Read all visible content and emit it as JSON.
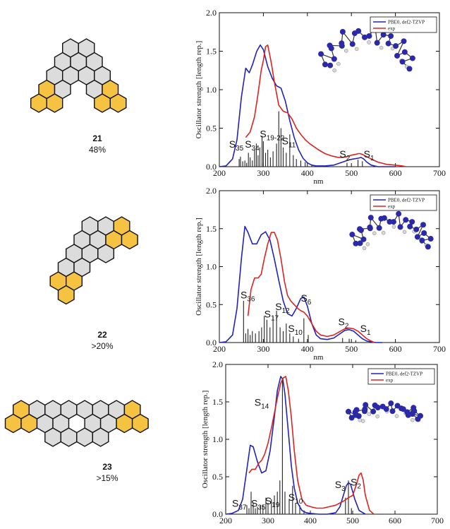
{
  "molecules": [
    {
      "number": "21",
      "yield": "48%"
    },
    {
      "number": "22",
      "yield": ">20%"
    },
    {
      "number": "23",
      "yield": ">15%"
    }
  ],
  "colors": {
    "theory": "#2222bb",
    "experiment": "#dd2222",
    "sticks": "#222222",
    "ring_fill_gray": "#dcdcdc",
    "ring_fill_yellow": "#f5c242",
    "atom_carbon": "#2a2aa8",
    "atom_hydrogen": "#d8d8d8"
  },
  "chart_data": [
    {
      "type": "line",
      "xlabel": "nm",
      "ylabel": "Oscillator strength [length rep.]",
      "xlim": [
        200,
        700
      ],
      "ylim": [
        0,
        2.0
      ],
      "xticks": [
        "200",
        "300",
        "400",
        "500",
        "600",
        "700"
      ],
      "yticks": [
        "0.0",
        "0.5",
        "1.0",
        "1.5",
        "2.0"
      ],
      "legend_position": "top-right",
      "series": [
        {
          "name": "PBE0, def2-TZVP",
          "color": "#2222bb",
          "x": [
            200,
            215,
            230,
            240,
            250,
            260,
            268,
            275,
            285,
            293,
            300,
            310,
            320,
            330,
            340,
            350,
            360,
            370,
            380,
            390,
            400,
            410,
            420,
            440,
            460,
            480,
            495,
            505,
            515,
            522,
            528,
            535,
            545,
            560,
            580,
            600
          ],
          "y": [
            0,
            0.01,
            0.1,
            0.35,
            0.9,
            1.28,
            1.22,
            1.32,
            1.5,
            1.58,
            1.52,
            1.3,
            1.15,
            1.05,
            1.02,
            0.85,
            0.6,
            0.38,
            0.22,
            0.11,
            0.05,
            0.02,
            0.01,
            0.01,
            0.02,
            0.06,
            0.09,
            0.1,
            0.11,
            0.12,
            0.1,
            0.06,
            0.02,
            0.0,
            0,
            0
          ]
        },
        {
          "name": "exp",
          "color": "#dd2222",
          "x": [
            260,
            270,
            280,
            288,
            295,
            300,
            305,
            310,
            318,
            325,
            335,
            345,
            355,
            365,
            375,
            385,
            395,
            405,
            415,
            425,
            440,
            455,
            470,
            480,
            490,
            500,
            510,
            515,
            520,
            525,
            535,
            545,
            560,
            580,
            600,
            615,
            625
          ],
          "y": [
            0.38,
            0.45,
            0.65,
            0.95,
            1.25,
            1.38,
            1.56,
            1.58,
            1.35,
            1.1,
            0.8,
            0.72,
            0.7,
            0.62,
            0.5,
            0.42,
            0.35,
            0.3,
            0.26,
            0.22,
            0.17,
            0.14,
            0.12,
            0.12,
            0.13,
            0.15,
            0.16,
            0.17,
            0.17,
            0.16,
            0.13,
            0.1,
            0.06,
            0.03,
            0.02,
            0.01,
            0
          ]
        }
      ],
      "sticks": [
        {
          "x": 245,
          "f": 0.1
        },
        {
          "x": 248,
          "f": 0.13
        },
        {
          "x": 253,
          "f": 0.07
        },
        {
          "x": 258,
          "f": 0.08
        },
        {
          "x": 262,
          "f": 0.05
        },
        {
          "x": 266,
          "f": 0.18
        },
        {
          "x": 270,
          "f": 0.12
        },
        {
          "x": 275,
          "f": 0.08
        },
        {
          "x": 280,
          "f": 0.22
        },
        {
          "x": 284,
          "f": 0.3
        },
        {
          "x": 288,
          "f": 0.15
        },
        {
          "x": 292,
          "f": 0.25
        },
        {
          "x": 297,
          "f": 0.4
        },
        {
          "x": 300,
          "f": 0.33
        },
        {
          "x": 305,
          "f": 0.18
        },
        {
          "x": 310,
          "f": 0.22
        },
        {
          "x": 316,
          "f": 0.12
        },
        {
          "x": 322,
          "f": 0.2
        },
        {
          "x": 330,
          "f": 0.3
        },
        {
          "x": 335,
          "f": 0.72
        },
        {
          "x": 340,
          "f": 0.5
        },
        {
          "x": 345,
          "f": 0.25
        },
        {
          "x": 352,
          "f": 0.18
        },
        {
          "x": 360,
          "f": 0.42
        },
        {
          "x": 368,
          "f": 0.15
        },
        {
          "x": 375,
          "f": 0.1
        },
        {
          "x": 385,
          "f": 0.08
        },
        {
          "x": 395,
          "f": 0.06
        },
        {
          "x": 410,
          "f": 0.03
        },
        {
          "x": 490,
          "f": 0.05
        },
        {
          "x": 515,
          "f": 0.09
        },
        {
          "x": 525,
          "f": 0.07
        }
      ],
      "annotations": [
        {
          "label": "S",
          "sub": "35",
          "x": 222,
          "y": 0.25
        },
        {
          "label": "S",
          "sub": "34",
          "x": 258,
          "y": 0.25
        },
        {
          "label": "S",
          "sub": "19-22",
          "x": 292,
          "y": 0.38
        },
        {
          "label": "S",
          "sub": "11",
          "x": 342,
          "y": 0.29
        },
        {
          "label": "S",
          "sub": "2",
          "x": 473,
          "y": 0.12
        },
        {
          "label": "S",
          "sub": "1",
          "x": 528,
          "y": 0.12
        }
      ]
    },
    {
      "type": "line",
      "xlabel": "nm",
      "ylabel": "Oscillator strength [length rep.]",
      "xlim": [
        200,
        700
      ],
      "ylim": [
        0,
        2.0
      ],
      "xticks": [
        "200",
        "300",
        "400",
        "500",
        "600",
        "700"
      ],
      "yticks": [
        "0.0",
        "0.5",
        "1.0",
        "1.5",
        "2.0"
      ],
      "legend_position": "top-right",
      "series": [
        {
          "name": "PBE0, def2-TZVP",
          "color": "#2222bb",
          "x": [
            200,
            215,
            230,
            240,
            250,
            258,
            265,
            275,
            285,
            295,
            305,
            315,
            325,
            335,
            345,
            355,
            365,
            375,
            385,
            392,
            400,
            410,
            420,
            430,
            445,
            460,
            475,
            485,
            495,
            505,
            515,
            525,
            535,
            545,
            555,
            570
          ],
          "y": [
            0,
            0.01,
            0.1,
            0.45,
            1.1,
            1.53,
            1.45,
            1.3,
            1.3,
            1.42,
            1.46,
            1.35,
            1.1,
            0.82,
            0.55,
            0.38,
            0.35,
            0.45,
            0.58,
            0.6,
            0.48,
            0.25,
            0.1,
            0.05,
            0.04,
            0.06,
            0.12,
            0.16,
            0.17,
            0.15,
            0.1,
            0.05,
            0.02,
            0.01,
            0,
            0
          ]
        },
        {
          "name": "exp",
          "color": "#dd2222",
          "x": [
            265,
            272,
            280,
            288,
            295,
            302,
            310,
            318,
            325,
            332,
            340,
            348,
            355,
            362,
            370,
            378,
            385,
            392,
            400,
            410,
            420,
            430,
            445,
            460,
            475,
            485,
            495,
            505,
            515,
            525,
            535,
            545,
            552
          ],
          "y": [
            0.35,
            0.7,
            0.85,
            0.85,
            0.9,
            1.1,
            1.3,
            1.45,
            1.45,
            1.35,
            1.1,
            0.8,
            0.62,
            0.55,
            0.5,
            0.45,
            0.42,
            0.4,
            0.35,
            0.25,
            0.15,
            0.1,
            0.08,
            0.1,
            0.15,
            0.18,
            0.19,
            0.18,
            0.15,
            0.1,
            0.05,
            0.02,
            0
          ]
        }
      ],
      "sticks": [
        {
          "x": 255,
          "f": 0.55
        },
        {
          "x": 260,
          "f": 0.12
        },
        {
          "x": 265,
          "f": 0.18
        },
        {
          "x": 270,
          "f": 0.1
        },
        {
          "x": 275,
          "f": 0.15
        },
        {
          "x": 282,
          "f": 0.12
        },
        {
          "x": 290,
          "f": 0.15
        },
        {
          "x": 296,
          "f": 0.2
        },
        {
          "x": 302,
          "f": 0.35
        },
        {
          "x": 308,
          "f": 0.3
        },
        {
          "x": 315,
          "f": 0.2
        },
        {
          "x": 322,
          "f": 0.35
        },
        {
          "x": 330,
          "f": 0.42
        },
        {
          "x": 338,
          "f": 0.2
        },
        {
          "x": 345,
          "f": 0.15
        },
        {
          "x": 352,
          "f": 0.25
        },
        {
          "x": 360,
          "f": 0.12
        },
        {
          "x": 368,
          "f": 0.08
        },
        {
          "x": 380,
          "f": 0.05
        },
        {
          "x": 392,
          "f": 0.32
        },
        {
          "x": 402,
          "f": 0.1
        },
        {
          "x": 480,
          "f": 0.06
        },
        {
          "x": 495,
          "f": 0.05
        },
        {
          "x": 510,
          "f": 0.03
        }
      ],
      "annotations": [
        {
          "label": "S",
          "sub": "36",
          "x": 248,
          "y": 0.58
        },
        {
          "label": "S",
          "sub": "17",
          "x": 302,
          "y": 0.33
        },
        {
          "label": "S",
          "sub": "12",
          "x": 327,
          "y": 0.43
        },
        {
          "label": "S",
          "sub": "10",
          "x": 356,
          "y": 0.14
        },
        {
          "label": "S",
          "sub": "6",
          "x": 385,
          "y": 0.54
        },
        {
          "label": "S",
          "sub": "2",
          "x": 470,
          "y": 0.23
        },
        {
          "label": "S",
          "sub": "1",
          "x": 520,
          "y": 0.14
        }
      ]
    },
    {
      "type": "line",
      "xlabel": "",
      "ylabel": "Oscillator strength [length rep.]",
      "xlim": [
        200,
        700
      ],
      "ylim": [
        0,
        2.0
      ],
      "xticks": [
        "200",
        "300",
        "400",
        "500",
        "600",
        "700"
      ],
      "yticks": [
        "0.0",
        "0.5",
        "1.0",
        "1.5",
        "2.0"
      ],
      "legend_position": "top-right",
      "series": [
        {
          "name": "PBE0, def2-TZVP",
          "color": "#2222bb",
          "x": [
            200,
            215,
            230,
            240,
            250,
            258,
            265,
            275,
            285,
            295,
            305,
            315,
            322,
            330,
            335,
            340,
            348,
            355,
            362,
            370,
            380,
            390,
            400,
            420,
            440,
            460,
            470,
            478,
            485,
            490,
            495,
            505,
            515,
            530
          ],
          "y": [
            0,
            0.01,
            0.05,
            0.2,
            0.6,
            0.92,
            0.9,
            0.7,
            0.55,
            0.58,
            0.85,
            1.3,
            1.65,
            1.84,
            1.8,
            1.6,
            1.1,
            0.65,
            0.35,
            0.15,
            0.05,
            0.02,
            0.01,
            0,
            0,
            0.02,
            0.1,
            0.25,
            0.38,
            0.42,
            0.4,
            0.2,
            0.05,
            0
          ]
        },
        {
          "name": "exp",
          "color": "#dd2222",
          "x": [
            255,
            262,
            270,
            278,
            285,
            292,
            300,
            308,
            315,
            322,
            330,
            336,
            342,
            348,
            355,
            362,
            370,
            380,
            390,
            400,
            415,
            430,
            445,
            460,
            470,
            480,
            490,
            500,
            508,
            515,
            520,
            525,
            530,
            540,
            550
          ],
          "y": [
            0.55,
            0.6,
            0.6,
            0.68,
            0.72,
            0.8,
            0.95,
            1.15,
            1.35,
            1.55,
            1.75,
            1.82,
            1.84,
            1.65,
            1.3,
            0.85,
            0.45,
            0.2,
            0.12,
            0.1,
            0.08,
            0.08,
            0.1,
            0.12,
            0.15,
            0.18,
            0.22,
            0.25,
            0.38,
            0.52,
            0.55,
            0.45,
            0.25,
            0.05,
            0
          ]
        }
      ],
      "sticks": [
        {
          "x": 250,
          "f": 0.12
        },
        {
          "x": 255,
          "f": 0.08
        },
        {
          "x": 260,
          "f": 0.3
        },
        {
          "x": 265,
          "f": 0.15
        },
        {
          "x": 270,
          "f": 0.08
        },
        {
          "x": 275,
          "f": 0.1
        },
        {
          "x": 282,
          "f": 0.12
        },
        {
          "x": 288,
          "f": 0.12
        },
        {
          "x": 295,
          "f": 0.22
        },
        {
          "x": 300,
          "f": 0.15
        },
        {
          "x": 308,
          "f": 0.2
        },
        {
          "x": 315,
          "f": 0.25
        },
        {
          "x": 322,
          "f": 0.3
        },
        {
          "x": 328,
          "f": 0.45
        },
        {
          "x": 334,
          "f": 1.82
        },
        {
          "x": 340,
          "f": 0.3
        },
        {
          "x": 350,
          "f": 0.2
        },
        {
          "x": 358,
          "f": 0.38
        },
        {
          "x": 365,
          "f": 0.15
        },
        {
          "x": 375,
          "f": 0.12
        },
        {
          "x": 385,
          "f": 0.05
        },
        {
          "x": 483,
          "f": 0.22
        },
        {
          "x": 490,
          "f": 0.45
        },
        {
          "x": 497,
          "f": 0.08
        }
      ],
      "annotations": [
        {
          "label": "S",
          "sub": "14",
          "x": 268,
          "y": 1.45
        },
        {
          "label": "S",
          "sub": "37",
          "x": 215,
          "y": 0.1
        },
        {
          "label": "S",
          "sub": "35",
          "x": 260,
          "y": 0.1
        },
        {
          "label": "S",
          "sub": "19",
          "x": 293,
          "y": 0.13
        },
        {
          "label": "S",
          "sub": "10",
          "x": 348,
          "y": 0.18
        },
        {
          "label": "S",
          "sub": "3",
          "x": 458,
          "y": 0.35
        },
        {
          "label": "S",
          "sub": "2",
          "x": 495,
          "y": 0.38
        }
      ]
    }
  ]
}
